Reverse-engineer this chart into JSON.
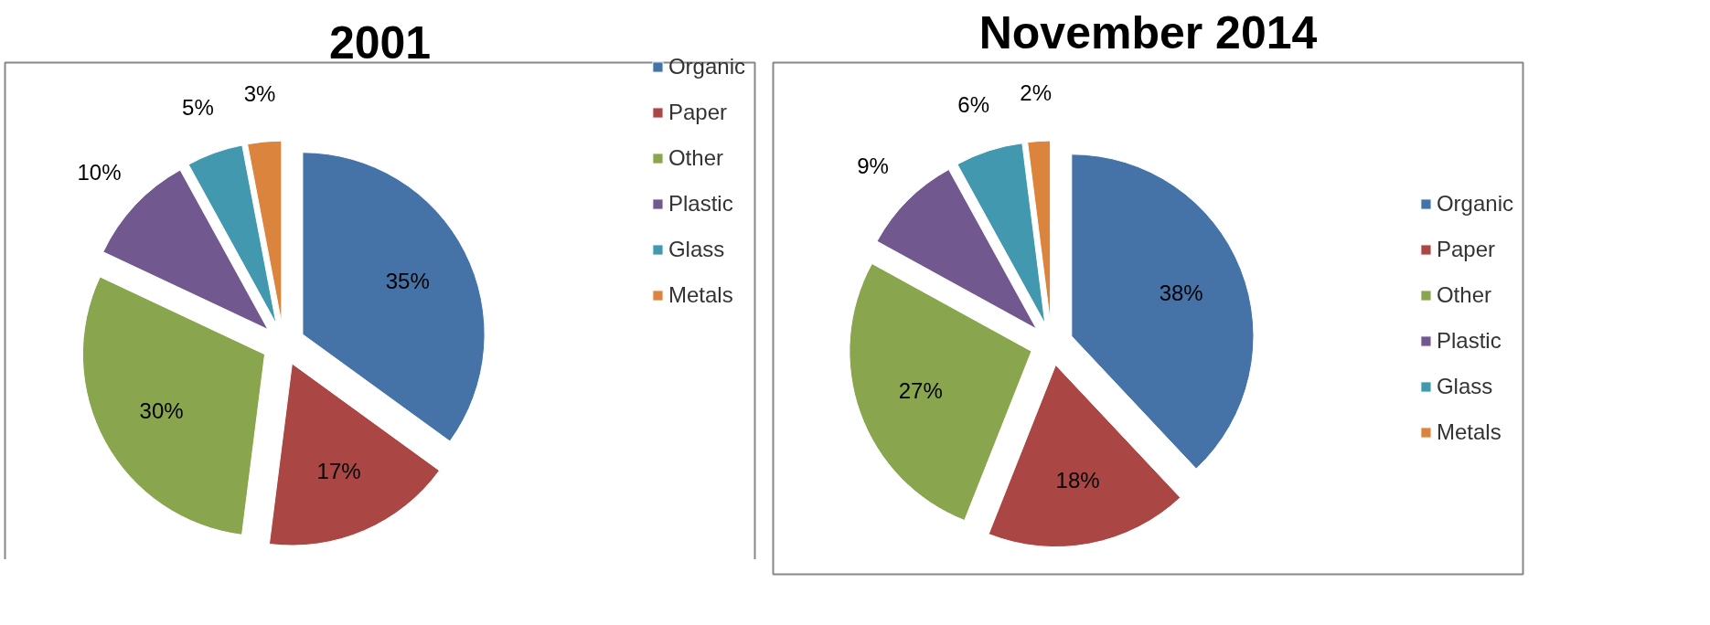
{
  "chart_data": [
    {
      "type": "pie",
      "title": "2001",
      "categories": [
        "Organic",
        "Paper",
        "Other",
        "Plastic",
        "Glass",
        "Metals"
      ],
      "values": [
        35,
        17,
        30,
        10,
        5,
        3
      ],
      "value_labels": [
        "35%",
        "17%",
        "30%",
        "10%",
        "5%",
        "3%"
      ],
      "colors": [
        "#4572a7",
        "#aa4643",
        "#89a54e",
        "#71588f",
        "#4198af",
        "#db843d"
      ],
      "legend": "top right"
    },
    {
      "type": "pie",
      "title": "November 2014",
      "categories": [
        "Organic",
        "Paper",
        "Other",
        "Plastic",
        "Glass",
        "Metals"
      ],
      "values": [
        38,
        18,
        27,
        9,
        6,
        2
      ],
      "value_labels": [
        "38%",
        "18%",
        "27%",
        "9%",
        "6%",
        "2%"
      ],
      "colors": [
        "#4572a7",
        "#aa4643",
        "#89a54e",
        "#71588f",
        "#4198af",
        "#db843d"
      ],
      "legend": "right"
    }
  ]
}
